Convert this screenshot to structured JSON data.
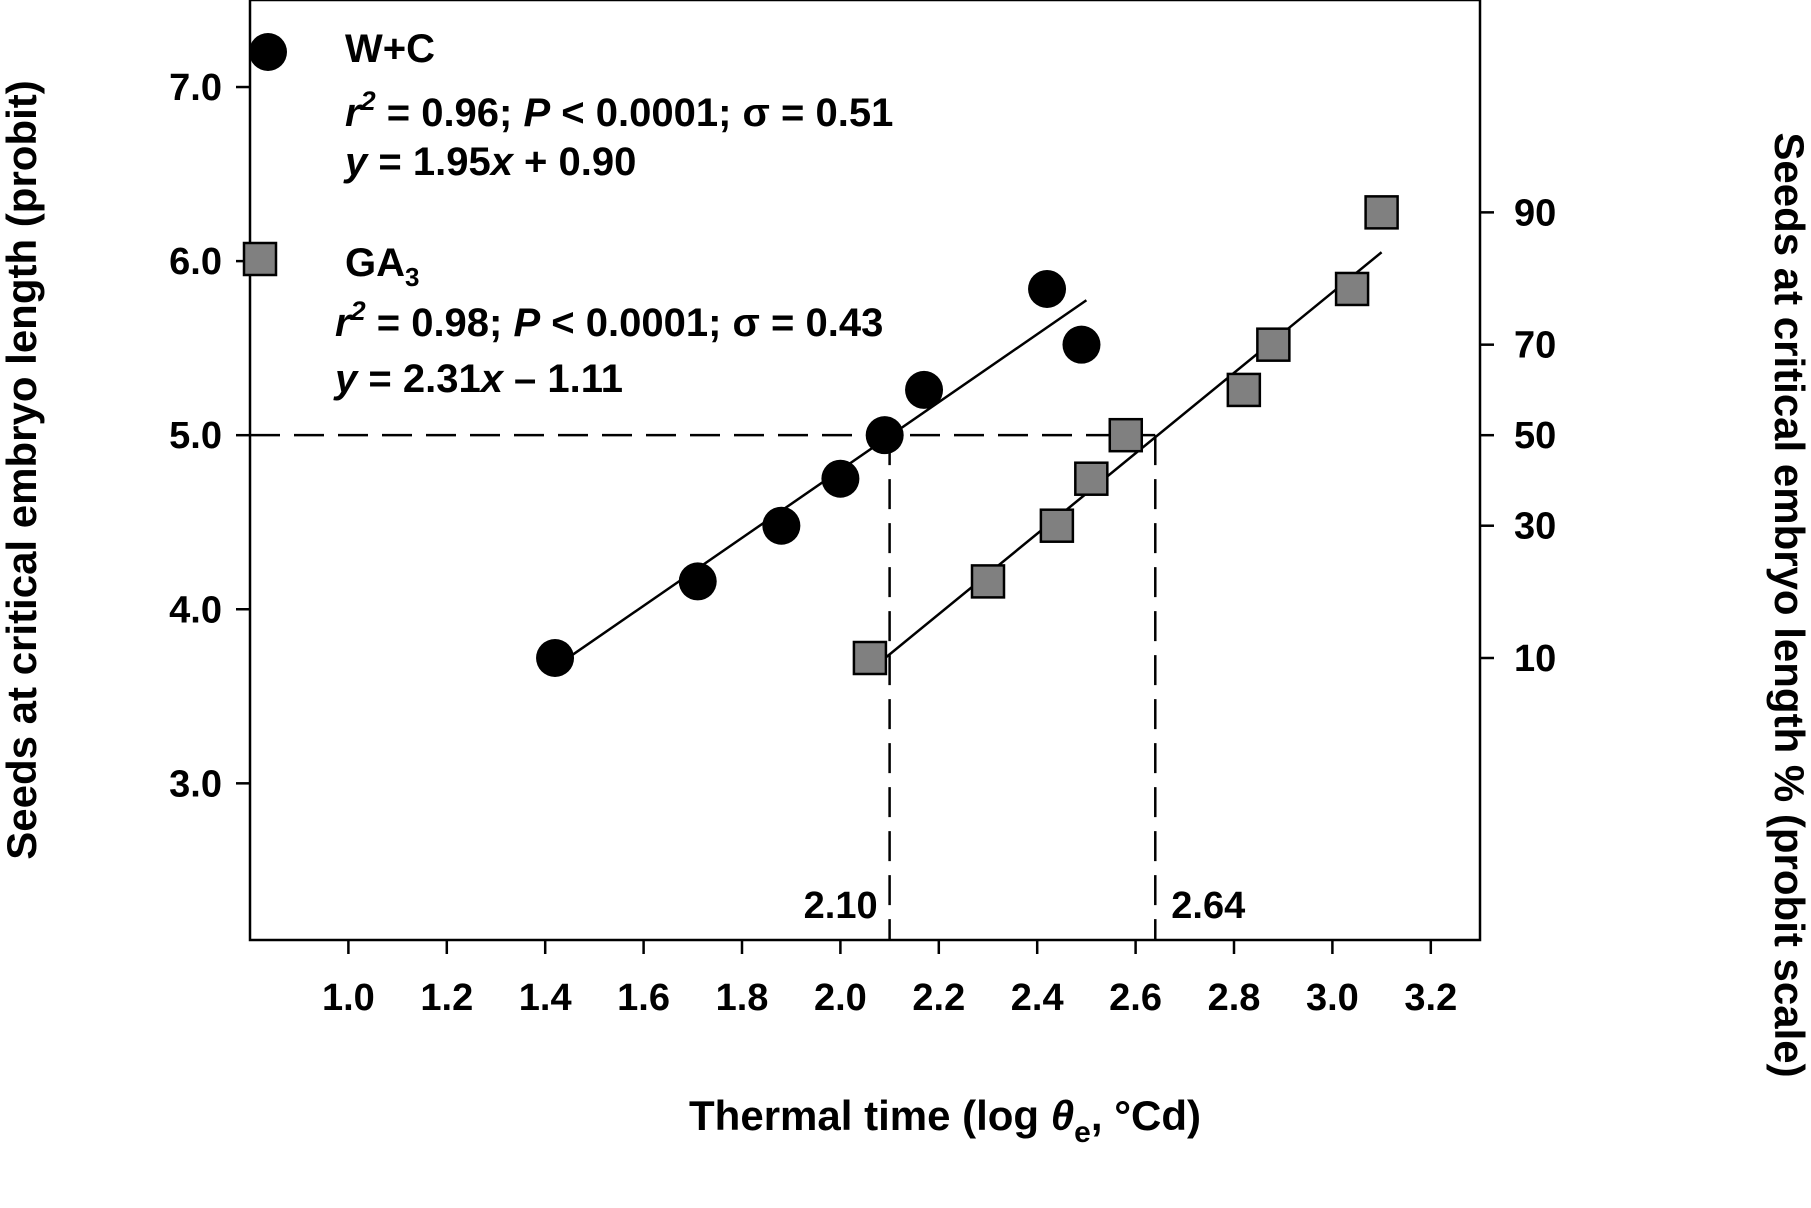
{
  "chart_data": {
    "type": "scatter",
    "xlabel": "Thermal time (log θe, °Cd)",
    "xlabel_parts": {
      "pre": "Thermal time (log ",
      "theta": "θ",
      "sub": "e",
      "post": ", °Cd)"
    },
    "ylabel_left": "Seeds at critical embryo length (probit)",
    "ylabel_right": "Seeds at critical embryo length % (probit scale)",
    "xlim": [
      0.8,
      3.3
    ],
    "ylim": [
      2.1,
      7.5
    ],
    "x_ticks": [
      "1.0",
      "1.2",
      "1.4",
      "1.6",
      "1.8",
      "2.0",
      "2.2",
      "2.4",
      "2.6",
      "2.8",
      "3.0",
      "3.2"
    ],
    "x_tick_values": [
      1.0,
      1.2,
      1.4,
      1.6,
      1.8,
      2.0,
      2.2,
      2.4,
      2.6,
      2.8,
      3.0,
      3.2
    ],
    "y_ticks_left": [
      "3.0",
      "4.0",
      "5.0",
      "6.0",
      "7.0"
    ],
    "y_tick_values_left": [
      3.0,
      4.0,
      5.0,
      6.0,
      7.0
    ],
    "y_ticks_right": [
      "10",
      "30",
      "50",
      "70",
      "90"
    ],
    "y_tick_values_right": [
      3.72,
      4.48,
      5.0,
      5.52,
      6.28
    ],
    "grid": false,
    "legend_position": "top-left",
    "series": [
      {
        "name": "W+C",
        "marker": "circle",
        "color": "#000000",
        "x": [
          1.42,
          1.71,
          1.88,
          2.0,
          2.09,
          2.17,
          2.42,
          2.49
        ],
        "y": [
          3.72,
          4.16,
          4.48,
          4.75,
          5.0,
          5.26,
          5.84,
          5.52
        ],
        "fit": {
          "x_range": [
            1.45,
            2.5
          ],
          "slope": 1.95,
          "intercept": 0.9
        },
        "stats_parts": {
          "r": "r",
          "sup": "2",
          "mid": " = 0.96; ",
          "p": "P",
          "rest": " < 0.0001; σ = 0.51"
        },
        "equation_parts": {
          "y": "y",
          "mid": " = 1.95",
          "x": "x",
          "rest": " + 0.90"
        }
      },
      {
        "name": "GA3",
        "name_parts": {
          "base": "GA",
          "sub": "3"
        },
        "marker": "square",
        "color": "#808080",
        "x": [
          2.06,
          2.3,
          2.44,
          2.51,
          2.58,
          2.82,
          2.88,
          3.04,
          3.1
        ],
        "y": [
          3.72,
          4.16,
          4.48,
          4.75,
          5.0,
          5.26,
          5.52,
          5.84,
          6.28
        ],
        "fit": {
          "x_range": [
            2.07,
            3.1
          ],
          "slope": 2.31,
          "intercept": -1.11
        },
        "stats_parts": {
          "r": "r",
          "sup": "2",
          "mid": " = 0.98; ",
          "p": "P",
          "rest": " < 0.0001; σ = 0.43"
        },
        "equation_parts": {
          "y": "y",
          "mid": " = 2.31",
          "x": "x",
          "rest": " – 1.11"
        }
      }
    ],
    "reference_lines": {
      "y": 5.0,
      "x_values": [
        2.1,
        2.64
      ],
      "x_labels": [
        "2.10",
        "2.64"
      ]
    }
  }
}
